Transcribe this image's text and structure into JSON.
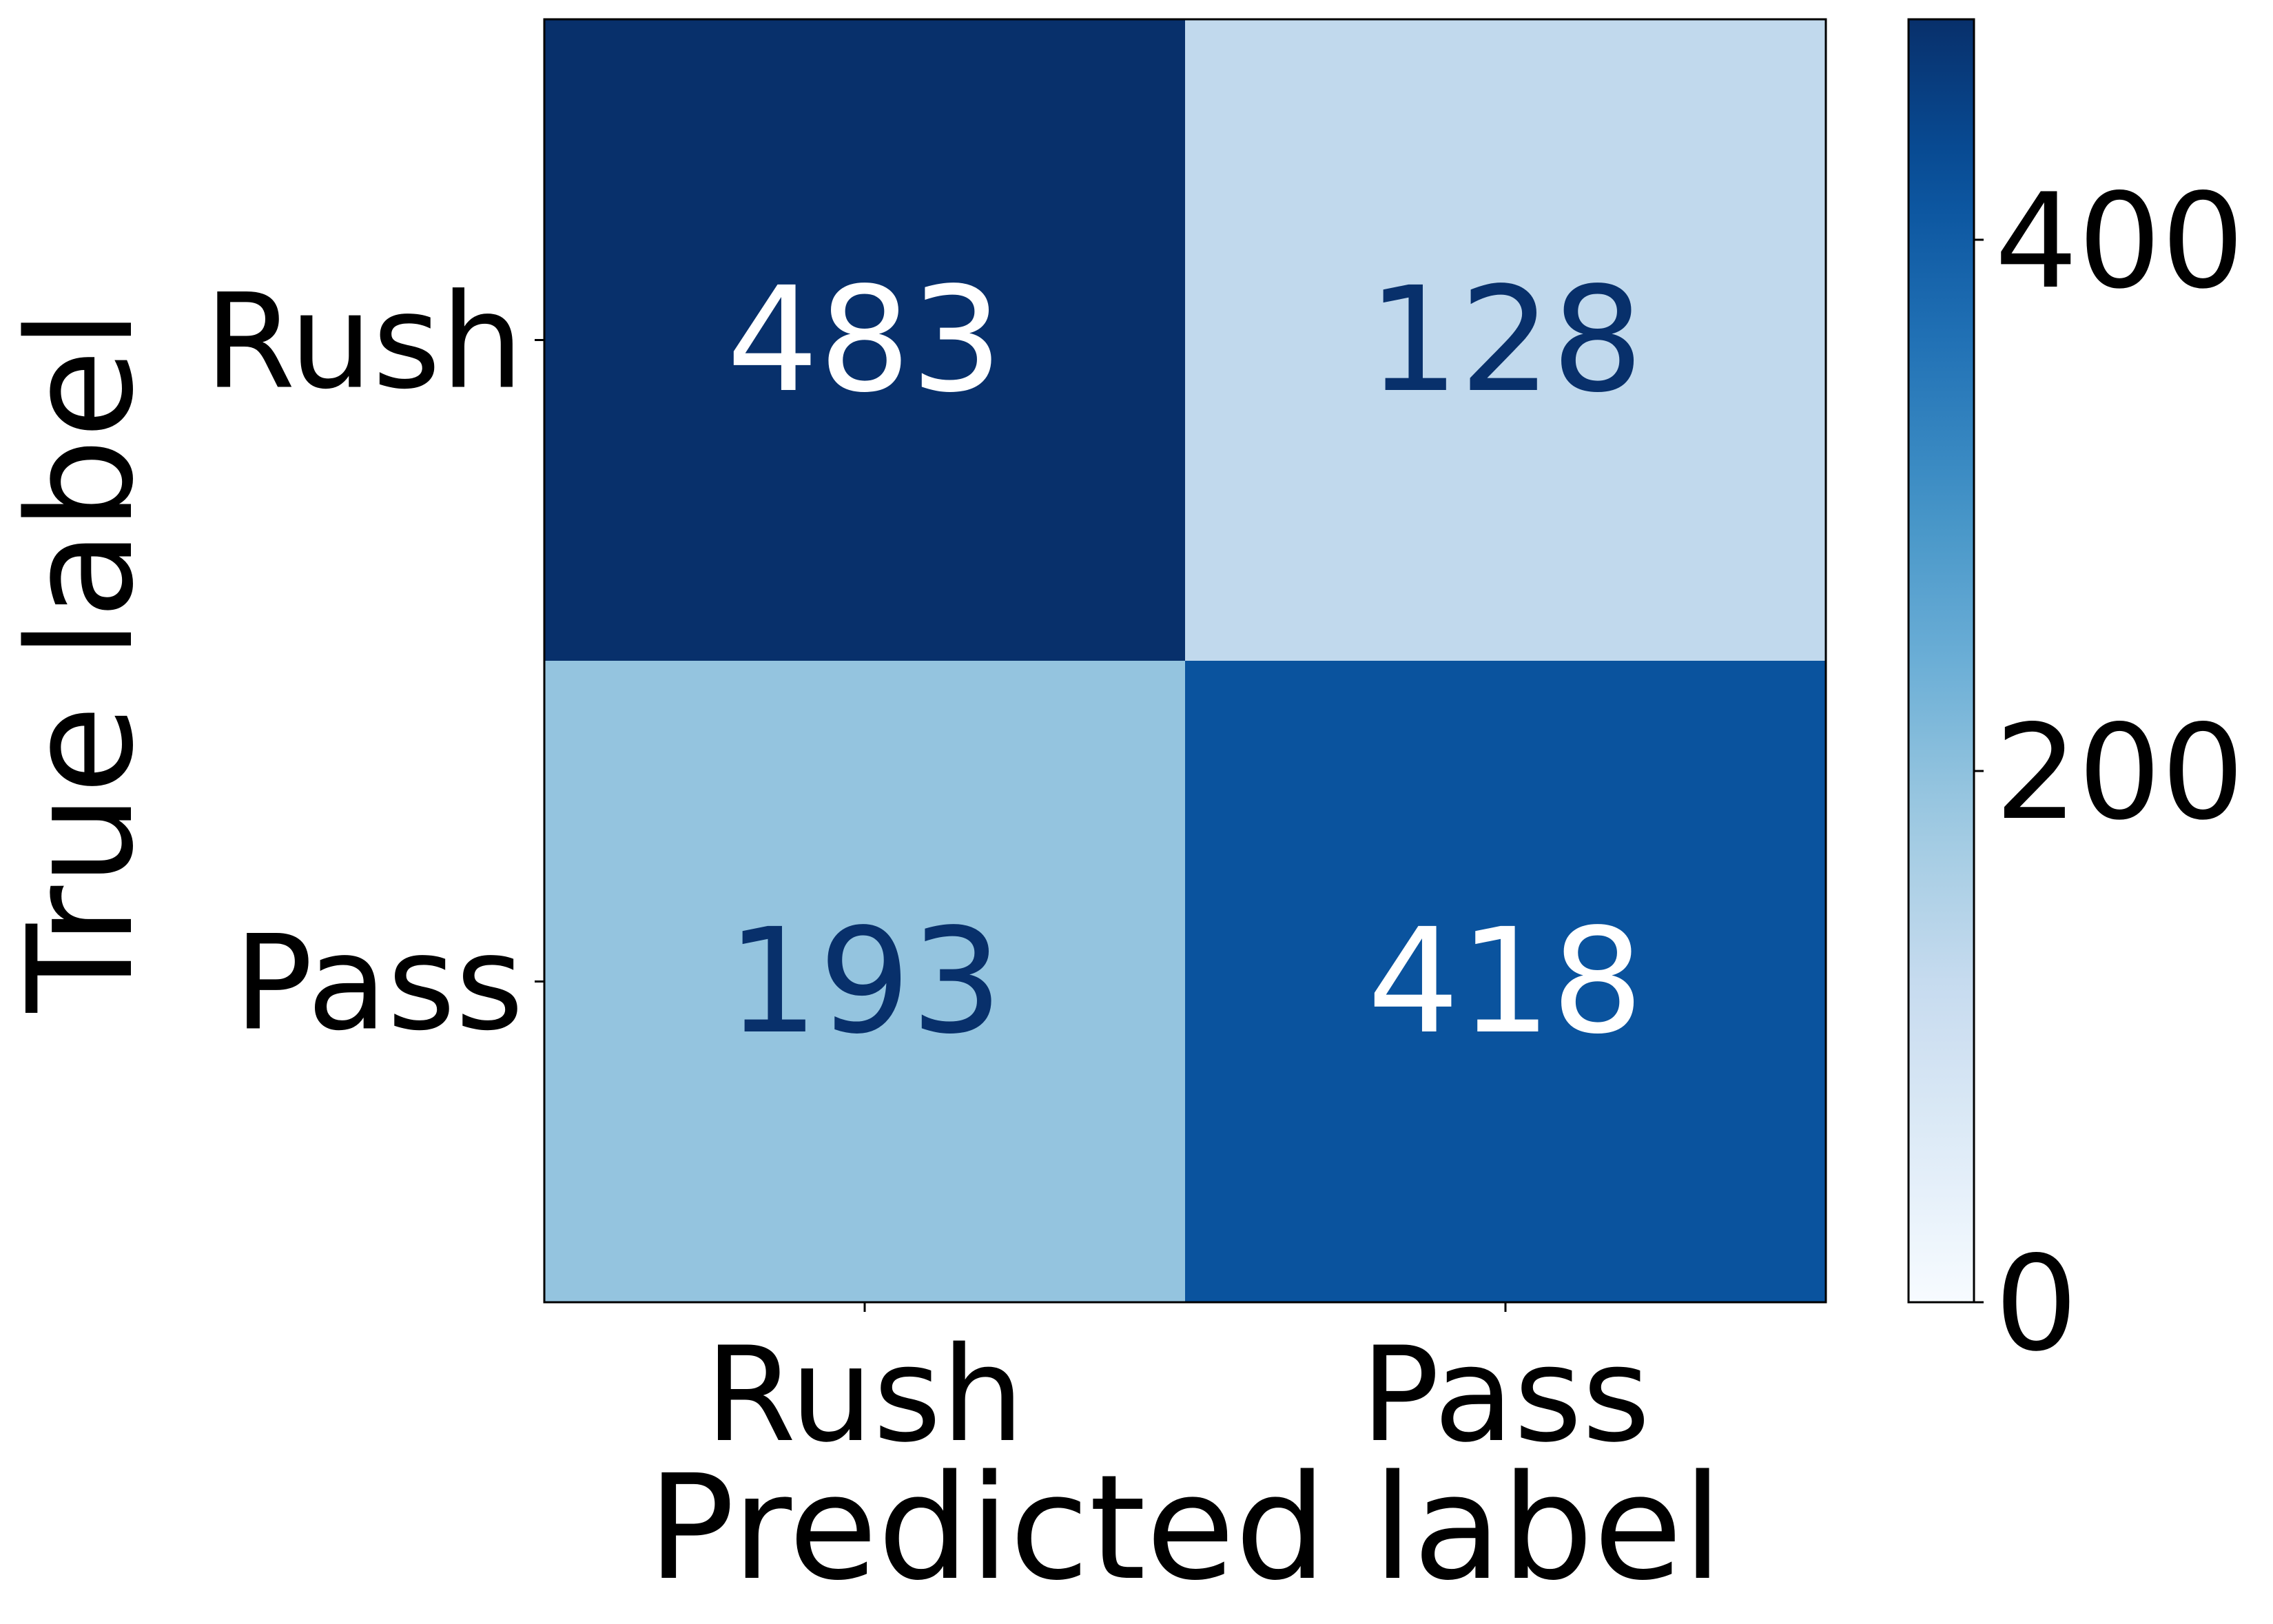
{
  "chart_data": {
    "type": "heatmap",
    "title": "",
    "xlabel": "Predicted label",
    "ylabel": "True label",
    "x_categories": [
      "Rush",
      "Pass"
    ],
    "y_categories": [
      "Rush",
      "Pass"
    ],
    "matrix": [
      [
        483,
        128
      ],
      [
        193,
        418
      ]
    ],
    "colormap": "Blues",
    "colorbar": {
      "range": [
        0,
        483
      ],
      "ticks": [
        0,
        200,
        400
      ]
    },
    "colors": {
      "text_on_dark": "#ffffff",
      "text_on_light": "#08306b",
      "frame": "#000000"
    }
  }
}
